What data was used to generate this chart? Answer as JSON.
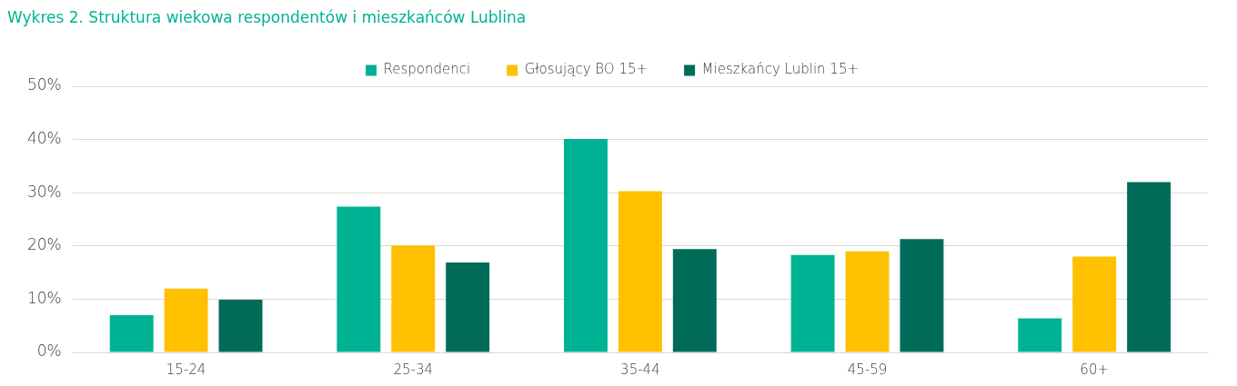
{
  "chart_data": {
    "type": "bar",
    "title": "Wykres 2. Struktura wiekowa respondentów i mieszkańców Lublina",
    "categories": [
      "15-24",
      "25-34",
      "35-44",
      "45-59",
      "60+"
    ],
    "series": [
      {
        "name": "Respondenci",
        "color": "#00b294",
        "values": [
          7,
          27.4,
          40.1,
          18.3,
          6.4
        ]
      },
      {
        "name": "Głosujący BO 15+",
        "color": "#ffc000",
        "values": [
          12,
          20.1,
          30.3,
          19,
          18
        ]
      },
      {
        "name": "Mieszkańcy Lublin 15+",
        "color": "#006b58",
        "values": [
          9.9,
          16.9,
          19.4,
          21.3,
          32
        ]
      }
    ],
    "ylim": [
      0,
      50
    ],
    "yticks": [
      {
        "value": 0,
        "label": "0%"
      },
      {
        "value": 10,
        "label": "10%"
      },
      {
        "value": 20,
        "label": "20%"
      },
      {
        "value": 30,
        "label": "30%"
      },
      {
        "value": 40,
        "label": "40%"
      },
      {
        "value": 50,
        "label": "50%"
      }
    ],
    "grid": "y",
    "legend": "top"
  }
}
